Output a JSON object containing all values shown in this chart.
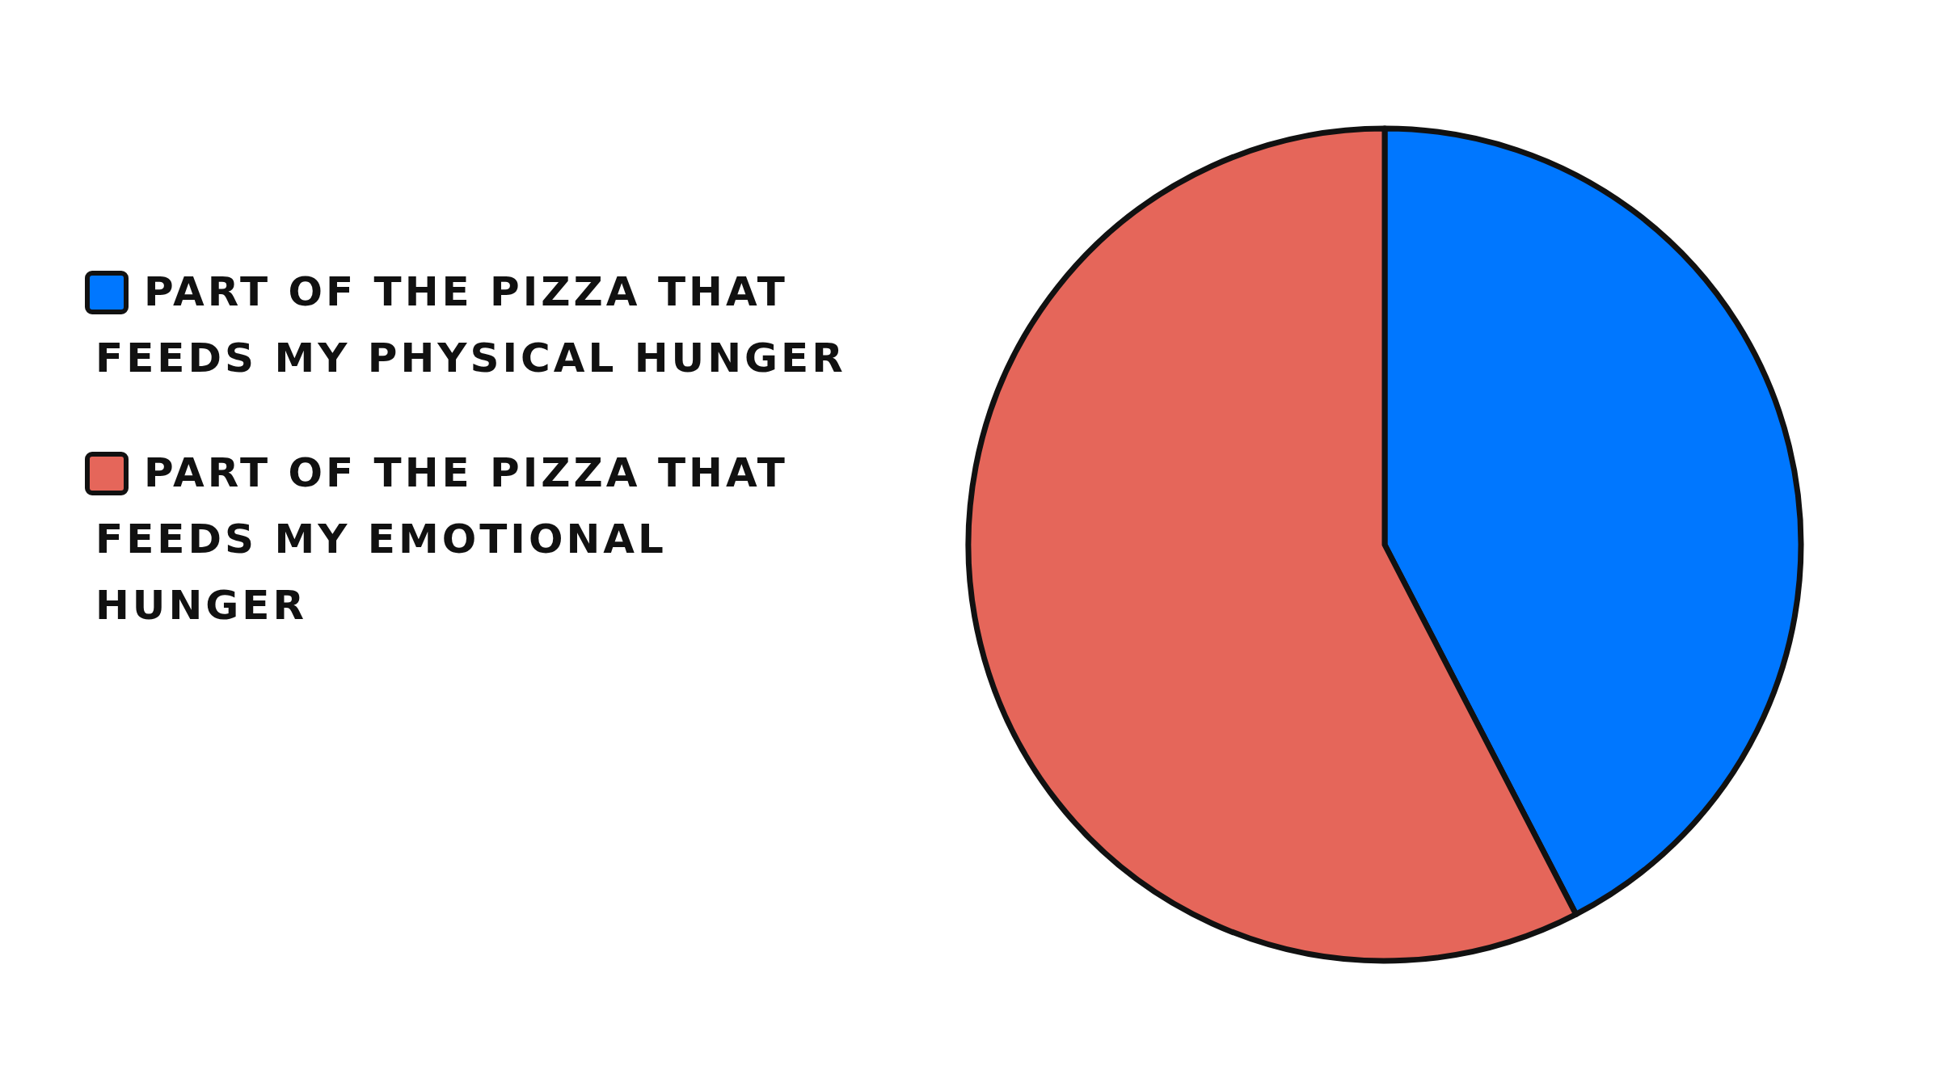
{
  "chart_data": {
    "type": "pie",
    "categories": [
      "PART OF THE PIZZA THAT FEEDS MY PHYSICAL HUNGER",
      "PART OF THE PIZZA THAT FEEDS MY EMOTIONAL HUNGER"
    ],
    "values": [
      42.4,
      57.6
    ],
    "colors": [
      "#0077ff",
      "#e5665a"
    ],
    "legend": "left"
  }
}
